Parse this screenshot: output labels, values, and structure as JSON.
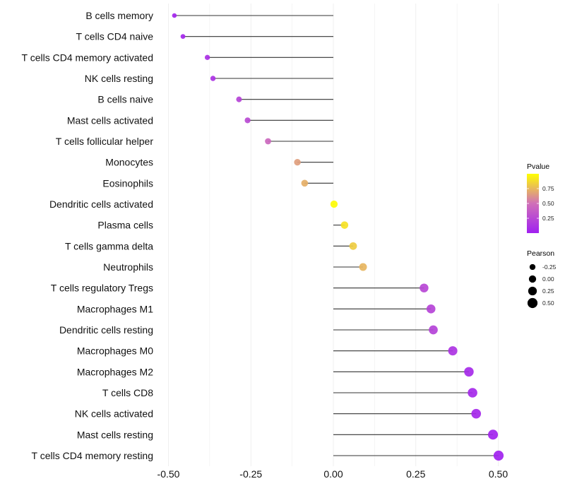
{
  "chart_data": {
    "type": "lollipop",
    "title": "",
    "xlabel": "",
    "ylabel": "",
    "xlim": [
      -0.52,
      0.52
    ],
    "x_ticks": [
      -0.5,
      -0.25,
      0,
      0.25,
      0.5
    ],
    "x_tick_labels": [
      "-0.50",
      "-0.25",
      "0.00",
      "0.25",
      "0.50"
    ],
    "grid": true,
    "categories": [
      "B cells memory",
      "T cells CD4 naive",
      "T cells CD4 memory activated",
      "NK cells resting",
      "B cells naive",
      "Mast cells activated",
      "T cells follicular helper",
      "Monocytes",
      "Eosinophils",
      "Dendritic cells activated",
      "Plasma cells",
      "T cells gamma delta",
      "Neutrophils",
      "T cells regulatory  Tregs ",
      "Macrophages M1",
      "Dendritic cells resting",
      "Macrophages M0",
      "Macrophages M2",
      "T cells CD8",
      "NK cells activated",
      "Mast cells resting",
      "T cells CD4 memory resting"
    ],
    "pearson": [
      -0.482,
      -0.456,
      -0.382,
      -0.365,
      -0.286,
      -0.26,
      -0.198,
      -0.109,
      -0.087,
      0.002,
      0.034,
      0.06,
      0.09,
      0.275,
      0.296,
      0.303,
      0.362,
      0.411,
      0.422,
      0.433,
      0.484,
      0.501
    ],
    "pvalue": [
      0.03,
      0.04,
      0.1,
      0.11,
      0.22,
      0.26,
      0.45,
      0.66,
      0.72,
      0.99,
      0.9,
      0.82,
      0.74,
      0.24,
      0.22,
      0.21,
      0.12,
      0.06,
      0.05,
      0.05,
      0.02,
      0.01
    ],
    "legend_color": {
      "title": "Pvalue",
      "ticks": [
        0.25,
        0.5,
        0.75
      ],
      "tick_labels": [
        "0.25",
        "0.50",
        "0.75"
      ],
      "range": [
        0,
        1
      ],
      "low_color": "#a020f0",
      "mid_color": "#d070b8",
      "high_color": "#ffff00"
    },
    "legend_size": {
      "title": "Pearson",
      "values": [
        -0.25,
        0,
        0.25,
        0.5
      ],
      "labels": [
        "-0.25",
        "0.00",
        "0.25",
        "0.50"
      ]
    },
    "legend_placement": "right"
  }
}
